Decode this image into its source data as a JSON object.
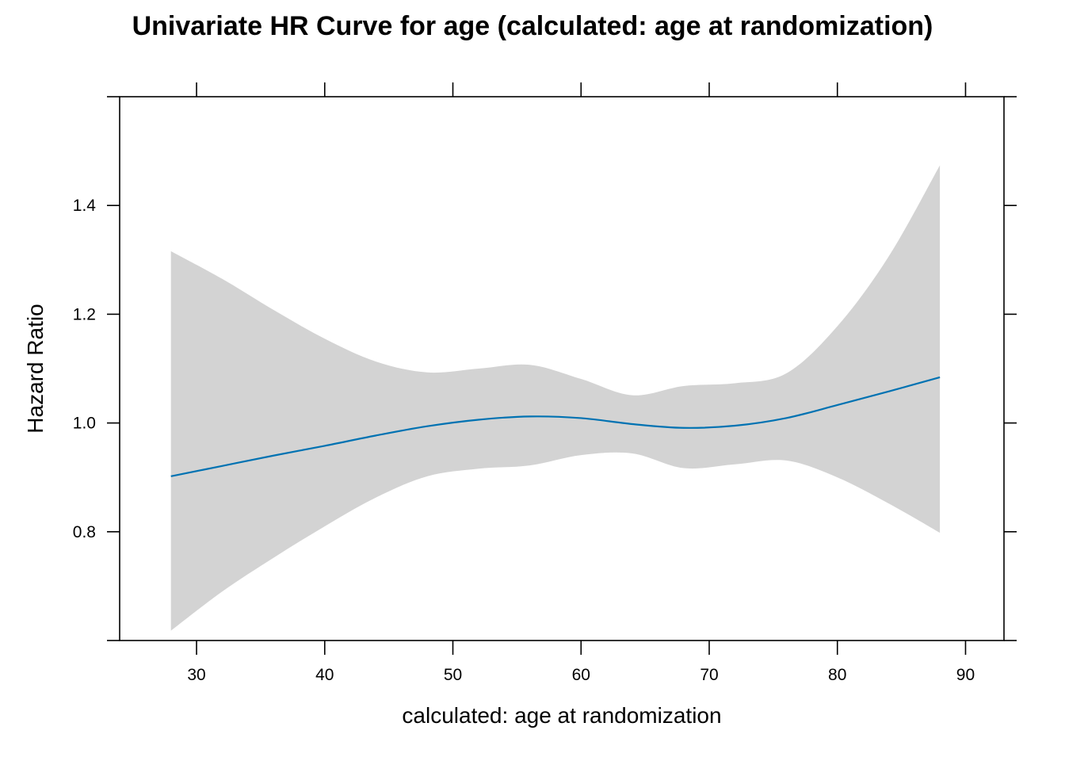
{
  "chart_data": {
    "type": "line",
    "title": "Univariate HR Curve for age (calculated: age at randomization)",
    "xlabel": "calculated: age at randomization",
    "ylabel": "Hazard Ratio",
    "xlim": [
      24,
      93
    ],
    "ylim": [
      0.6,
      1.6
    ],
    "x_ticks": [
      30,
      40,
      50,
      60,
      70,
      80,
      90
    ],
    "y_ticks": [
      0.8,
      1.0,
      1.2,
      1.4
    ],
    "x_tick_labels": [
      "30",
      "40",
      "50",
      "60",
      "70",
      "80",
      "90"
    ],
    "y_tick_labels": [
      "0.8",
      "1.0",
      "1.2",
      "1.4"
    ],
    "grid": false,
    "line_color": "#0072B2",
    "band_color": "#d3d3d3",
    "series": [
      {
        "x": [
          28,
          32,
          36,
          40,
          44,
          48,
          52,
          56,
          60,
          64,
          68,
          72,
          76,
          80,
          84,
          88
        ],
        "y": [
          0.902,
          0.921,
          0.94,
          0.958,
          0.977,
          0.994,
          1.006,
          1.012,
          1.009,
          0.998,
          0.991,
          0.995,
          1.009,
          1.033,
          1.058,
          1.084
        ],
        "lower": [
          0.618,
          0.69,
          0.752,
          0.81,
          0.863,
          0.902,
          0.916,
          0.922,
          0.941,
          0.944,
          0.917,
          0.924,
          0.931,
          0.9,
          0.852,
          0.798
        ],
        "upper": [
          1.316,
          1.265,
          1.208,
          1.155,
          1.113,
          1.093,
          1.1,
          1.107,
          1.081,
          1.051,
          1.068,
          1.073,
          1.091,
          1.178,
          1.306,
          1.474
        ]
      }
    ]
  }
}
